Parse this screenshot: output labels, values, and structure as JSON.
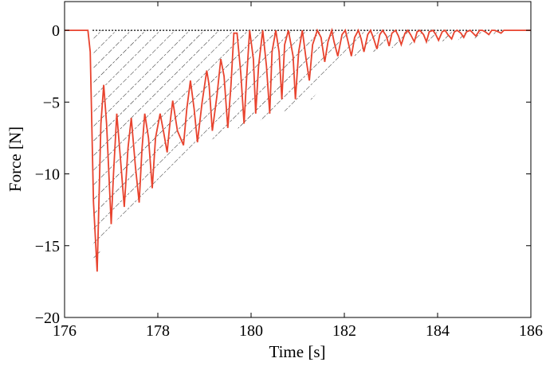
{
  "chart_data": {
    "type": "line",
    "title": "",
    "xlabel": "Time [s]",
    "ylabel": "Force [N]",
    "xlim": [
      176,
      186
    ],
    "ylim": [
      -20,
      2
    ],
    "xticks": [
      176,
      178,
      180,
      182,
      184,
      186
    ],
    "yticks": [
      0,
      -5,
      -10,
      -15,
      -20
    ],
    "grid": false,
    "legend": "none",
    "series": [
      {
        "name": "",
        "color": "#e8432e",
        "x": [
          176.0,
          176.5,
          176.55,
          176.62,
          176.7,
          176.78,
          176.84,
          176.9,
          177.0,
          177.05,
          177.12,
          177.2,
          177.28,
          177.36,
          177.43,
          177.52,
          177.6,
          177.66,
          177.72,
          177.8,
          177.88,
          177.95,
          178.05,
          178.12,
          178.2,
          178.25,
          178.32,
          178.42,
          178.55,
          178.62,
          178.7,
          178.78,
          178.85,
          178.95,
          179.05,
          179.1,
          179.17,
          179.27,
          179.35,
          179.42,
          179.5,
          179.57,
          179.63,
          179.7,
          179.78,
          179.85,
          179.9,
          179.97,
          180.05,
          180.1,
          180.16,
          180.25,
          180.33,
          180.4,
          180.45,
          180.53,
          180.6,
          180.66,
          180.72,
          180.8,
          180.9,
          180.95,
          181.02,
          181.1,
          181.18,
          181.25,
          181.32,
          181.42,
          181.5,
          181.58,
          181.65,
          181.73,
          181.78,
          181.86,
          181.95,
          182.02,
          182.08,
          182.15,
          182.22,
          182.3,
          182.36,
          182.42,
          182.5,
          182.56,
          182.62,
          182.7,
          182.76,
          182.82,
          182.9,
          182.96,
          183.02,
          183.1,
          183.16,
          183.22,
          183.3,
          183.36,
          183.42,
          183.5,
          183.56,
          183.62,
          183.7,
          183.76,
          183.82,
          183.9,
          183.96,
          184.02,
          184.1,
          184.16,
          184.22,
          184.3,
          184.36,
          184.42,
          184.5,
          184.56,
          184.62,
          184.7,
          184.76,
          184.82,
          184.9,
          184.96,
          185.02,
          185.1,
          185.16,
          185.22,
          185.3,
          185.36,
          185.42,
          185.5,
          186.0
        ],
        "y": [
          0,
          0,
          -1.5,
          -12.0,
          -16.8,
          -6.5,
          -3.8,
          -6.5,
          -13.5,
          -10.0,
          -5.8,
          -9.0,
          -12.3,
          -8.2,
          -6.1,
          -9.5,
          -12.0,
          -8.3,
          -5.8,
          -7.5,
          -11.0,
          -7.5,
          -5.8,
          -7.0,
          -8.5,
          -6.8,
          -4.9,
          -7.0,
          -8.0,
          -5.5,
          -3.5,
          -5.5,
          -7.8,
          -5.0,
          -2.8,
          -3.8,
          -7.0,
          -4.5,
          -2.0,
          -3.2,
          -6.8,
          -3.8,
          -0.2,
          -0.2,
          -3.0,
          -6.5,
          -3.5,
          0,
          -2.0,
          -5.8,
          -2.5,
          0,
          -2.5,
          -5.8,
          -1.5,
          0,
          -1.5,
          -4.8,
          -1.0,
          0,
          -1.8,
          -4.8,
          -1.5,
          0,
          -2.0,
          -3.5,
          -1.0,
          0,
          -0.5,
          -2.2,
          -0.8,
          0,
          -0.8,
          -1.8,
          -0.3,
          0,
          -0.8,
          -1.8,
          -0.5,
          0,
          -0.6,
          -1.5,
          -0.3,
          0,
          -0.5,
          -1.3,
          -0.3,
          0,
          -0.4,
          -1.1,
          -0.2,
          0,
          -0.4,
          -1.0,
          -0.2,
          0,
          -0.3,
          -0.8,
          -0.1,
          0,
          -0.3,
          -0.8,
          -0.1,
          0,
          -0.3,
          -0.7,
          -0.1,
          0,
          -0.3,
          -0.6,
          -0.1,
          0,
          -0.2,
          -0.5,
          -0.1,
          0,
          -0.2,
          -0.4,
          0,
          0,
          -0.1,
          -0.3,
          0,
          0,
          -0.1,
          -0.2,
          0,
          0,
          0
        ]
      }
    ],
    "hatched_region": {
      "description_visible": false,
      "x": [
        176.6,
        177.0,
        177.6,
        178.2,
        178.8,
        179.4,
        180.0,
        180.6,
        181.3,
        182.0,
        182.6,
        183.2,
        184.0,
        185.0,
        185.5
      ],
      "y": [
        -16.8,
        -13.5,
        -12.0,
        -10.2,
        -8.2,
        -7.2,
        -6.5,
        -5.8,
        -4.8,
        -2.0,
        -1.5,
        -1.1,
        -0.8,
        -0.5,
        0
      ]
    }
  }
}
